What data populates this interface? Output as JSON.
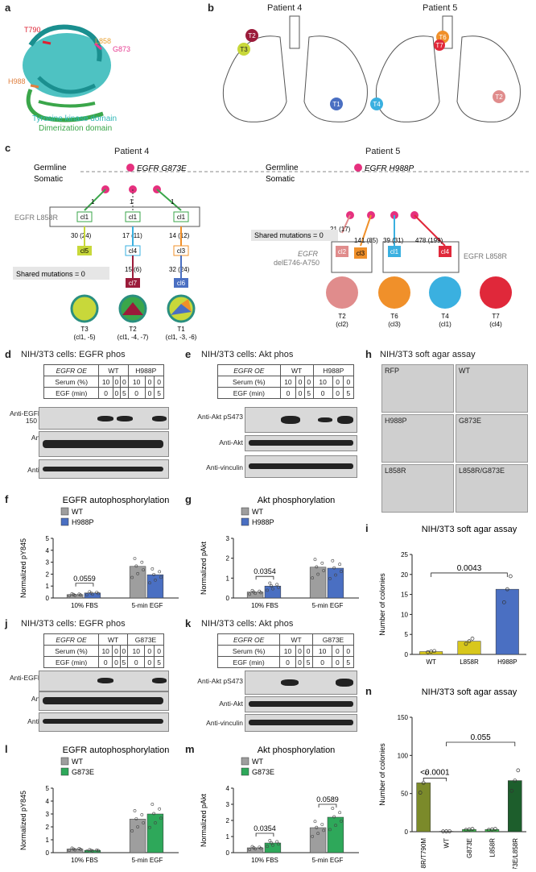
{
  "panels": {
    "a": "a",
    "b": "b",
    "c": "c",
    "d": "d",
    "e": "e",
    "f": "f",
    "g": "g",
    "h": "h",
    "i": "i",
    "j": "j",
    "k": "k",
    "l": "l",
    "m": "m",
    "n": "n"
  },
  "a": {
    "mut1": "T790",
    "mut2": "L858",
    "mut3": "G873",
    "mut4": "H988",
    "legend1": "Tyrosine kinase domain",
    "legend2": "Dimerization domain"
  },
  "b": {
    "p4": "Patient 4",
    "p5": "Patient 5",
    "t": [
      "T1",
      "T2",
      "T3",
      "T1",
      "T2",
      "T4",
      "T6",
      "T7"
    ]
  },
  "c": {
    "p4": "Patient 4",
    "p5": "Patient 5",
    "germline": "Germline",
    "somatic": "Somatic",
    "p4_germ": "EGFR G873E",
    "p5_germ": "EGFR H988P",
    "p4_box": "EGFR L858R",
    "one": "1",
    "cl1": "cl1",
    "cl4": "cl4",
    "cl5": "cl5",
    "cl7": "cl7",
    "cl3": "cl3",
    "cl6": "cl6",
    "n1": "30 (24)",
    "n2": "17 (11)",
    "n3": "14 (12)",
    "n4": "15 (6)",
    "n5": "32 (24)",
    "shared": "Shared mutations = 0",
    "t3": "T3",
    "t3s": "(cl1, -5)",
    "t2": "T2",
    "t2s": "(cl1, -4, -7)",
    "t1": "T1",
    "t1s": "(cl1, -3, -6)",
    "p5n1": "21 (17)",
    "p5n2": "141 (85)",
    "p5n3": "39 (31)",
    "p5n4": "478 (199)",
    "p5shared": "Shared mutations = 0",
    "p5left1": "EGFR",
    "p5left2": "delE746-A750",
    "p5right": "EGFR L858R",
    "cl2": "cl2",
    "cl3b": "cl3",
    "cl1b": "cl1",
    "cl4b": "cl4",
    "T2": "T2",
    "T2s": "(cl2)",
    "T6": "T6",
    "T6s": "(cl3)",
    "T4": "T4",
    "T4s": "(cl1)",
    "T7": "T7",
    "T7s": "(cl4)"
  },
  "d": {
    "title": "NIH/3T3 cells: EGFR phos",
    "oe": "EGFR OE",
    "wt": "WT",
    "mut": "H988P",
    "serum": "Serum (%)",
    "egf": "EGF (min)",
    "sv": [
      "10",
      "0",
      "0",
      "10",
      "0",
      "0"
    ],
    "ev": [
      "0",
      "0",
      "5",
      "0",
      "0",
      "5"
    ],
    "b1": "Anti-EGFR pY845",
    "b2": "Anti-EGFR",
    "b3": "Anti-vinculin",
    "m150": "150",
    "m100": "100"
  },
  "e": {
    "title": "NIH/3T3 cells: Akt phos",
    "oe": "EGFR OE",
    "wt": "WT",
    "mut": "H988P",
    "serum": "Serum (%)",
    "egf": "EGF (min)",
    "b1": "Anti-Akt pS473",
    "b2": "Anti-Akt",
    "b3": "Anti-vinculin"
  },
  "h": {
    "title": "NIH/3T3 soft agar assay",
    "labels": [
      "RFP",
      "WT",
      "H988P",
      "G873E",
      "L858R",
      "L858R/G873E"
    ]
  },
  "j": {
    "title": "NIH/3T3 cells: EGFR phos",
    "mut": "G873E",
    "sv": [
      "10",
      "0",
      "0",
      "10",
      "0",
      "0"
    ],
    "ev": [
      "0",
      "0",
      "5",
      "0",
      "0",
      "5"
    ]
  },
  "k": {
    "title": "NIH/3T3 cells: Akt phos",
    "mut": "G873E"
  },
  "chart_data": [
    {
      "id": "f",
      "type": "bar",
      "title": "EGFR autophosphorylation",
      "ylabel": "Normalized pY845",
      "categories": [
        "10% FBS",
        "5-min EGF"
      ],
      "series": [
        {
          "name": "WT",
          "values": [
            0.28,
            2.65
          ]
        },
        {
          "name": "H988P",
          "values": [
            0.42,
            1.95
          ]
        }
      ],
      "ylim": [
        0,
        5
      ],
      "yticks": [
        0,
        1,
        2,
        3,
        4,
        5
      ],
      "annotation": "0.0559",
      "colors": [
        "#9e9e9e",
        "#4a6fc2"
      ]
    },
    {
      "id": "g",
      "type": "bar",
      "title": "Akt phosphorylation",
      "ylabel": "Normalized pAkt",
      "categories": [
        "10% FBS",
        "5-min EGF"
      ],
      "series": [
        {
          "name": "WT",
          "values": [
            0.3,
            1.55
          ]
        },
        {
          "name": "H988P",
          "values": [
            0.6,
            1.5
          ]
        }
      ],
      "ylim": [
        0,
        3
      ],
      "yticks": [
        0,
        1,
        2,
        3
      ],
      "annotation": "0.0354",
      "colors": [
        "#9e9e9e",
        "#4a6fc2"
      ]
    },
    {
      "id": "i",
      "type": "bar",
      "title": "NIH/3T3 soft agar assay",
      "ylabel": "Number of colonies",
      "categories": [
        "WT",
        "L858R",
        "H988P"
      ],
      "values": [
        0.7,
        3.3,
        16.3
      ],
      "ylim": [
        0,
        25
      ],
      "yticks": [
        0,
        5,
        10,
        15,
        20,
        25
      ],
      "annotation": "0.0043",
      "colors": [
        "#d8c71c",
        "#d8c71c",
        "#4a6fc2"
      ]
    },
    {
      "id": "l",
      "type": "bar",
      "title": "EGFR autophosphorylation",
      "ylabel": "Normalized pY845",
      "categories": [
        "10% FBS",
        "5-min EGF"
      ],
      "series": [
        {
          "name": "WT",
          "values": [
            0.28,
            2.6
          ]
        },
        {
          "name": "G873E",
          "values": [
            0.18,
            3.0
          ]
        }
      ],
      "ylim": [
        0,
        5
      ],
      "yticks": [
        0,
        1,
        2,
        3,
        4,
        5
      ],
      "colors": [
        "#9e9e9e",
        "#2ea85a"
      ]
    },
    {
      "id": "m",
      "type": "bar",
      "title": "Akt phosphorylation",
      "ylabel": "Normalized pAkt",
      "categories": [
        "10% FBS",
        "5-min EGF"
      ],
      "series": [
        {
          "name": "WT",
          "values": [
            0.3,
            1.55
          ]
        },
        {
          "name": "G873E",
          "values": [
            0.6,
            2.2
          ]
        }
      ],
      "ylim": [
        0,
        4
      ],
      "yticks": [
        0,
        1,
        2,
        3,
        4
      ],
      "annotation": "0.0354",
      "annotation2": "0.0589",
      "colors": [
        "#9e9e9e",
        "#2ea85a"
      ]
    },
    {
      "id": "n",
      "type": "bar",
      "title": "NIH/3T3 soft agar assay",
      "ylabel": "Number of colonies",
      "categories": [
        "L858R/T790M",
        "WT",
        "G873E",
        "L858R",
        "G873E/L858R"
      ],
      "values": [
        64,
        0.5,
        3,
        3,
        67
      ],
      "ylim": [
        0,
        150
      ],
      "yticks": [
        0,
        50,
        100,
        150
      ],
      "annotation": "<0.0001",
      "annotation2": "0.055",
      "colors": [
        "#7b8a2a",
        "#7b8a2a",
        "#3cb04a",
        "#3cb04a",
        "#1d5e2c"
      ]
    }
  ]
}
